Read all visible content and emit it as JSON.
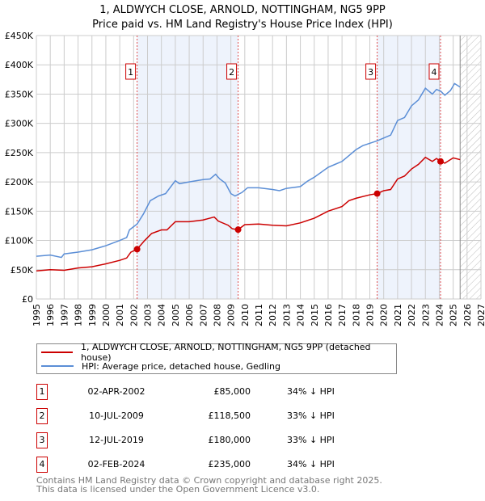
{
  "title": "1, ALDWYCH CLOSE, ARNOLD, NOTTINGHAM, NG5 9PP",
  "subtitle": "Price paid vs. HM Land Registry's House Price Index (HPI)",
  "chart_data": {
    "type": "line",
    "title": "1, ALDWYCH CLOSE, ARNOLD, NOTTINGHAM, NG5 9PP",
    "xlim": [
      1995,
      2027
    ],
    "ylim": [
      0,
      450000
    ],
    "x_ticks": [
      "1995",
      "1996",
      "1997",
      "1998",
      "1999",
      "2000",
      "2001",
      "2002",
      "2003",
      "2004",
      "2005",
      "2006",
      "2007",
      "2008",
      "2009",
      "2010",
      "2011",
      "2012",
      "2013",
      "2014",
      "2015",
      "2016",
      "2017",
      "2018",
      "2019",
      "2020",
      "2021",
      "2022",
      "2023",
      "2024",
      "2025",
      "2026",
      "2027"
    ],
    "y_ticks": [
      {
        "v": 0,
        "label": "£0"
      },
      {
        "v": 50000,
        "label": "£50K"
      },
      {
        "v": 100000,
        "label": "£100K"
      },
      {
        "v": 150000,
        "label": "£150K"
      },
      {
        "v": 200000,
        "label": "£200K"
      },
      {
        "v": 250000,
        "label": "£250K"
      },
      {
        "v": 300000,
        "label": "£300K"
      },
      {
        "v": 350000,
        "label": "£350K"
      },
      {
        "v": 400000,
        "label": "£400K"
      },
      {
        "v": 450000,
        "label": "£450K"
      }
    ],
    "forecast_start": 2025.5,
    "series": [
      {
        "name": "1, ALDWYCH CLOSE, ARNOLD, NOTTINGHAM, NG5 9PP (detached house)",
        "color": "#cc0000",
        "points": [
          [
            1995,
            48
          ],
          [
            1996,
            50
          ],
          [
            1997,
            49
          ],
          [
            1998,
            53
          ],
          [
            1999,
            55
          ],
          [
            2000,
            60
          ],
          [
            2001,
            66
          ],
          [
            2001.5,
            70
          ],
          [
            2001.8,
            80
          ],
          [
            2002.25,
            85
          ],
          [
            2002.8,
            100
          ],
          [
            2003.3,
            112
          ],
          [
            2004,
            118
          ],
          [
            2004.4,
            118
          ],
          [
            2005,
            132
          ],
          [
            2006,
            132
          ],
          [
            2007,
            135
          ],
          [
            2007.8,
            140
          ],
          [
            2008.1,
            133
          ],
          [
            2008.8,
            126
          ],
          [
            2009.1,
            120
          ],
          [
            2009.52,
            118.5
          ],
          [
            2010,
            127
          ],
          [
            2011,
            128
          ],
          [
            2012,
            126
          ],
          [
            2013,
            125
          ],
          [
            2014,
            130
          ],
          [
            2015,
            138
          ],
          [
            2016,
            150
          ],
          [
            2017,
            158
          ],
          [
            2017.5,
            168
          ],
          [
            2018,
            172
          ],
          [
            2019,
            178
          ],
          [
            2019.53,
            180
          ],
          [
            2020,
            185
          ],
          [
            2020.5,
            187
          ],
          [
            2021,
            205
          ],
          [
            2021.5,
            210
          ],
          [
            2022,
            222
          ],
          [
            2022.5,
            230
          ],
          [
            2023,
            242
          ],
          [
            2023.5,
            235
          ],
          [
            2023.8,
            240
          ],
          [
            2024.09,
            235
          ],
          [
            2024.4,
            232
          ],
          [
            2025,
            241
          ],
          [
            2025.5,
            238
          ]
        ]
      },
      {
        "name": "HPI: Average price, detached house, Gedling",
        "color": "#5b8ed6",
        "points": [
          [
            1995,
            73
          ],
          [
            1996,
            75
          ],
          [
            1996.8,
            71
          ],
          [
            1997,
            77
          ],
          [
            1998,
            80
          ],
          [
            1999,
            84
          ],
          [
            2000,
            91
          ],
          [
            2001,
            100
          ],
          [
            2001.5,
            105
          ],
          [
            2001.7,
            118
          ],
          [
            2002.25,
            128
          ],
          [
            2002.7,
            145
          ],
          [
            2003.2,
            168
          ],
          [
            2003.8,
            176
          ],
          [
            2004.3,
            180
          ],
          [
            2005,
            202
          ],
          [
            2005.3,
            197
          ],
          [
            2006,
            200
          ],
          [
            2007,
            204
          ],
          [
            2007.5,
            205
          ],
          [
            2007.9,
            213
          ],
          [
            2008.2,
            205
          ],
          [
            2008.6,
            198
          ],
          [
            2009,
            180
          ],
          [
            2009.3,
            176
          ],
          [
            2009.8,
            182
          ],
          [
            2010.2,
            190
          ],
          [
            2011,
            190
          ],
          [
            2012,
            187
          ],
          [
            2012.5,
            185
          ],
          [
            2013,
            189
          ],
          [
            2014,
            192
          ],
          [
            2014.5,
            201
          ],
          [
            2015,
            208
          ],
          [
            2016,
            225
          ],
          [
            2016.5,
            230
          ],
          [
            2017,
            235
          ],
          [
            2017.5,
            245
          ],
          [
            2018,
            255
          ],
          [
            2018.5,
            262
          ],
          [
            2019,
            266
          ],
          [
            2019.5,
            270
          ],
          [
            2020,
            275
          ],
          [
            2020.5,
            280
          ],
          [
            2021,
            305
          ],
          [
            2021.5,
            310
          ],
          [
            2022,
            330
          ],
          [
            2022.5,
            340
          ],
          [
            2023,
            360
          ],
          [
            2023.5,
            350
          ],
          [
            2023.8,
            358
          ],
          [
            2024.1,
            355
          ],
          [
            2024.4,
            348
          ],
          [
            2024.8,
            356
          ],
          [
            2025.1,
            368
          ],
          [
            2025.5,
            362
          ]
        ]
      }
    ],
    "sales": [
      {
        "n": "1",
        "x": 2002.25,
        "price": 85000,
        "date": "02-APR-2002",
        "price_label": "£85,000",
        "hpi": "34% ↓ HPI"
      },
      {
        "n": "2",
        "x": 2009.52,
        "price": 118500,
        "date": "10-JUL-2009",
        "price_label": "£118,500",
        "hpi": "33% ↓ HPI"
      },
      {
        "n": "3",
        "x": 2019.53,
        "price": 180000,
        "date": "12-JUL-2019",
        "price_label": "£180,000",
        "hpi": "33% ↓ HPI"
      },
      {
        "n": "4",
        "x": 2024.09,
        "price": 235000,
        "date": "02-FEB-2024",
        "price_label": "£235,000",
        "hpi": "34% ↓ HPI"
      }
    ]
  },
  "legend": {
    "red": "1, ALDWYCH CLOSE, ARNOLD, NOTTINGHAM, NG5 9PP (detached house)",
    "blue": "HPI: Average price, detached house, Gedling"
  },
  "footer": {
    "line1": "Contains HM Land Registry data © Crown copyright and database right 2025.",
    "line2": "This data is licensed under the Open Government Licence v3.0."
  }
}
